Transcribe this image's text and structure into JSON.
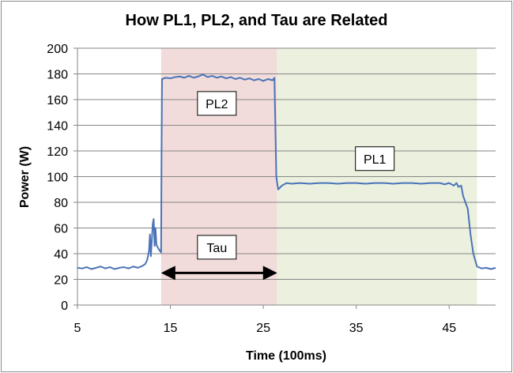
{
  "chart_data": {
    "type": "line",
    "title": "How PL1, PL2, and Tau are Related",
    "xlabel": "Time (100ms)",
    "ylabel": "Power (W)",
    "xlim": [
      5,
      50
    ],
    "ylim": [
      0,
      200
    ],
    "x_ticks": [
      5,
      15,
      25,
      35,
      45
    ],
    "y_ticks": [
      0,
      20,
      40,
      60,
      80,
      100,
      120,
      140,
      160,
      180,
      200
    ],
    "grid": "horizontal",
    "regions": [
      {
        "name": "PL2 region",
        "x_start": 14,
        "x_end": 26.5,
        "color": "#f2dcdb"
      },
      {
        "name": "PL1 region",
        "x_start": 26.5,
        "x_end": 48,
        "color": "#ebf1de"
      }
    ],
    "annotations": [
      {
        "text": "PL2",
        "x": 20,
        "y": 157
      },
      {
        "text": "PL1",
        "x": 37,
        "y": 114
      },
      {
        "text": "Tau",
        "x": 20,
        "y": 45,
        "arrow_from": 14,
        "arrow_to": 26.5,
        "arrow_y": 25
      }
    ],
    "series": [
      {
        "color": "#4a73b8",
        "points": [
          [
            5,
            29
          ],
          [
            5.5,
            28.5
          ],
          [
            6,
            29.5
          ],
          [
            6.5,
            28
          ],
          [
            7,
            29
          ],
          [
            7.5,
            30
          ],
          [
            8,
            28.5
          ],
          [
            8.5,
            29.5
          ],
          [
            9,
            28
          ],
          [
            9.5,
            29
          ],
          [
            10,
            29.5
          ],
          [
            10.5,
            28.5
          ],
          [
            11,
            30
          ],
          [
            11.5,
            29
          ],
          [
            12,
            30.5
          ],
          [
            12.3,
            32
          ],
          [
            12.5,
            35
          ],
          [
            12.7,
            42
          ],
          [
            12.8,
            55
          ],
          [
            12.9,
            38
          ],
          [
            13,
            50
          ],
          [
            13.1,
            63
          ],
          [
            13.2,
            67
          ],
          [
            13.3,
            46
          ],
          [
            13.4,
            60
          ],
          [
            13.5,
            47
          ],
          [
            13.7,
            44
          ],
          [
            14,
            41
          ],
          [
            14.05,
            120
          ],
          [
            14.1,
            176
          ],
          [
            14.5,
            177
          ],
          [
            15,
            176.5
          ],
          [
            15.5,
            177.5
          ],
          [
            16,
            178
          ],
          [
            16.5,
            177
          ],
          [
            17,
            178.5
          ],
          [
            17.5,
            177
          ],
          [
            18,
            178
          ],
          [
            18.5,
            179.5
          ],
          [
            19,
            177.5
          ],
          [
            19.5,
            178.5
          ],
          [
            20,
            177
          ],
          [
            20.5,
            178
          ],
          [
            21,
            176.5
          ],
          [
            21.5,
            177.5
          ],
          [
            22,
            176
          ],
          [
            22.5,
            177
          ],
          [
            23,
            175.5
          ],
          [
            23.5,
            176.5
          ],
          [
            24,
            175
          ],
          [
            24.5,
            176
          ],
          [
            25,
            174.5
          ],
          [
            25.5,
            176
          ],
          [
            26,
            175
          ],
          [
            26.2,
            177
          ],
          [
            26.4,
            100
          ],
          [
            26.6,
            90
          ],
          [
            27,
            93
          ],
          [
            27.5,
            95
          ],
          [
            28,
            94.5
          ],
          [
            29,
            95
          ],
          [
            30,
            94.5
          ],
          [
            31,
            95
          ],
          [
            32,
            95
          ],
          [
            33,
            94.5
          ],
          [
            34,
            95
          ],
          [
            35,
            95
          ],
          [
            36,
            94.5
          ],
          [
            37,
            95
          ],
          [
            38,
            95
          ],
          [
            39,
            94.5
          ],
          [
            40,
            95
          ],
          [
            41,
            95
          ],
          [
            42,
            94.5
          ],
          [
            43,
            95
          ],
          [
            44,
            95
          ],
          [
            44.5,
            94
          ],
          [
            45,
            95
          ],
          [
            45.5,
            93
          ],
          [
            45.8,
            95
          ],
          [
            46,
            92
          ],
          [
            46.3,
            93
          ],
          [
            46.5,
            85
          ],
          [
            47,
            75
          ],
          [
            47.3,
            55
          ],
          [
            47.6,
            40
          ],
          [
            48,
            30
          ],
          [
            48.5,
            28.5
          ],
          [
            49,
            29
          ],
          [
            49.5,
            28
          ],
          [
            50,
            29
          ]
        ]
      }
    ]
  }
}
